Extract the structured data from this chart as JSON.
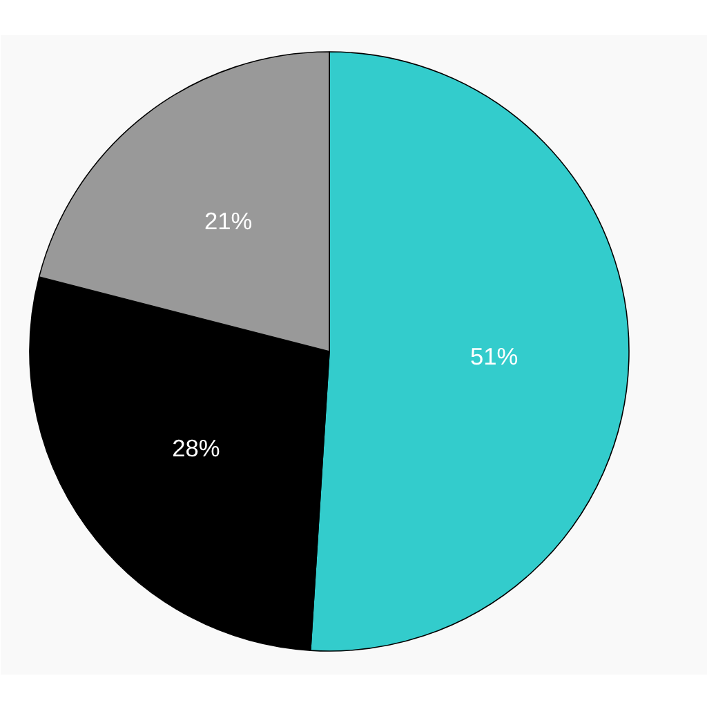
{
  "chart_data": {
    "type": "pie",
    "categories": [
      null,
      null,
      null
    ],
    "values": [
      51,
      28,
      21
    ],
    "colors": [
      "#33cccc",
      "#000000",
      "#999999"
    ],
    "value_labels": [
      "51%",
      "28%",
      "21%"
    ]
  }
}
